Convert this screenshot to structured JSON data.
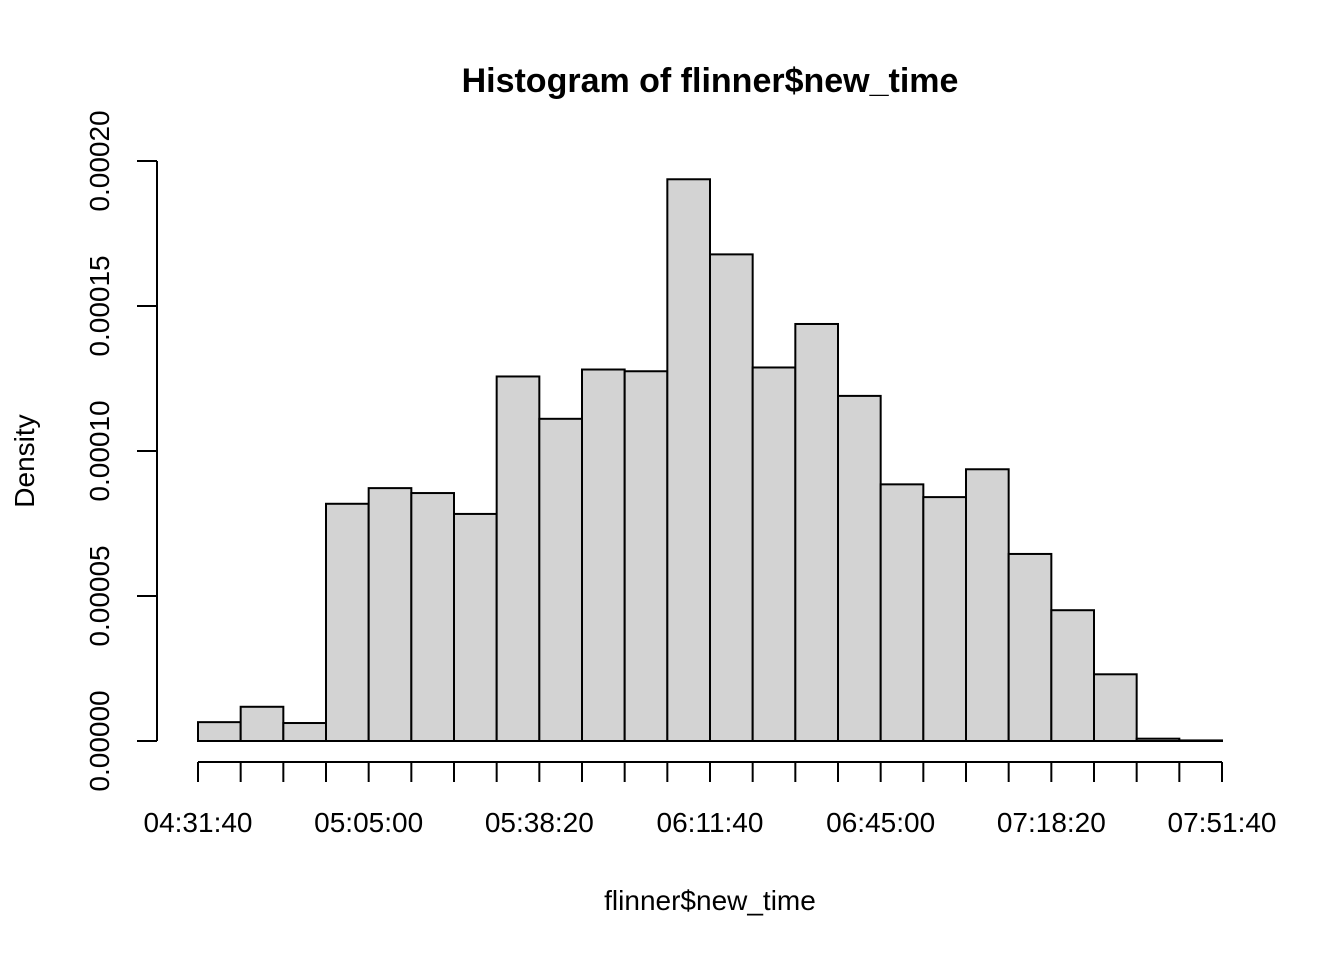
{
  "chart_data": {
    "type": "histogram",
    "title": "Histogram of flinner$new_time",
    "xlabel": "flinner$new_time",
    "ylabel": "Density",
    "bin_width_seconds": 500,
    "bin_start_seconds": 16300,
    "xlim_seconds": [
      16300,
      28300
    ],
    "ylim": [
      0,
      0.0002
    ],
    "x_ticks": [
      {
        "value": 16300,
        "label": "04:31:40"
      },
      {
        "value": 18300,
        "label": "05:05:00"
      },
      {
        "value": 20300,
        "label": "05:38:20"
      },
      {
        "value": 22300,
        "label": "06:11:40"
      },
      {
        "value": 24300,
        "label": "06:45:00"
      },
      {
        "value": 26300,
        "label": "07:18:20"
      },
      {
        "value": 28300,
        "label": "07:51:40"
      }
    ],
    "y_ticks": [
      {
        "value": 0,
        "label": "0.00000"
      },
      {
        "value": 5e-05,
        "label": "0.00005"
      },
      {
        "value": 0.0001,
        "label": "0.00010"
      },
      {
        "value": 0.00015,
        "label": "0.00015"
      },
      {
        "value": 0.0002,
        "label": "0.00020"
      }
    ],
    "densities": [
      6.5e-06,
      1.18e-05,
      6.2e-06,
      8.18e-05,
      8.72e-05,
      8.55e-05,
      7.83e-05,
      0.0001257,
      0.0001111,
      0.0001281,
      0.0001275,
      0.0001937,
      0.0001678,
      0.0001288,
      0.0001438,
      0.000119,
      8.85e-05,
      8.41e-05,
      9.37e-05,
      6.45e-05,
      4.51e-05,
      2.3e-05,
      8e-07,
      2e-07
    ],
    "bar_color": "#d3d3d3",
    "grid": false
  }
}
